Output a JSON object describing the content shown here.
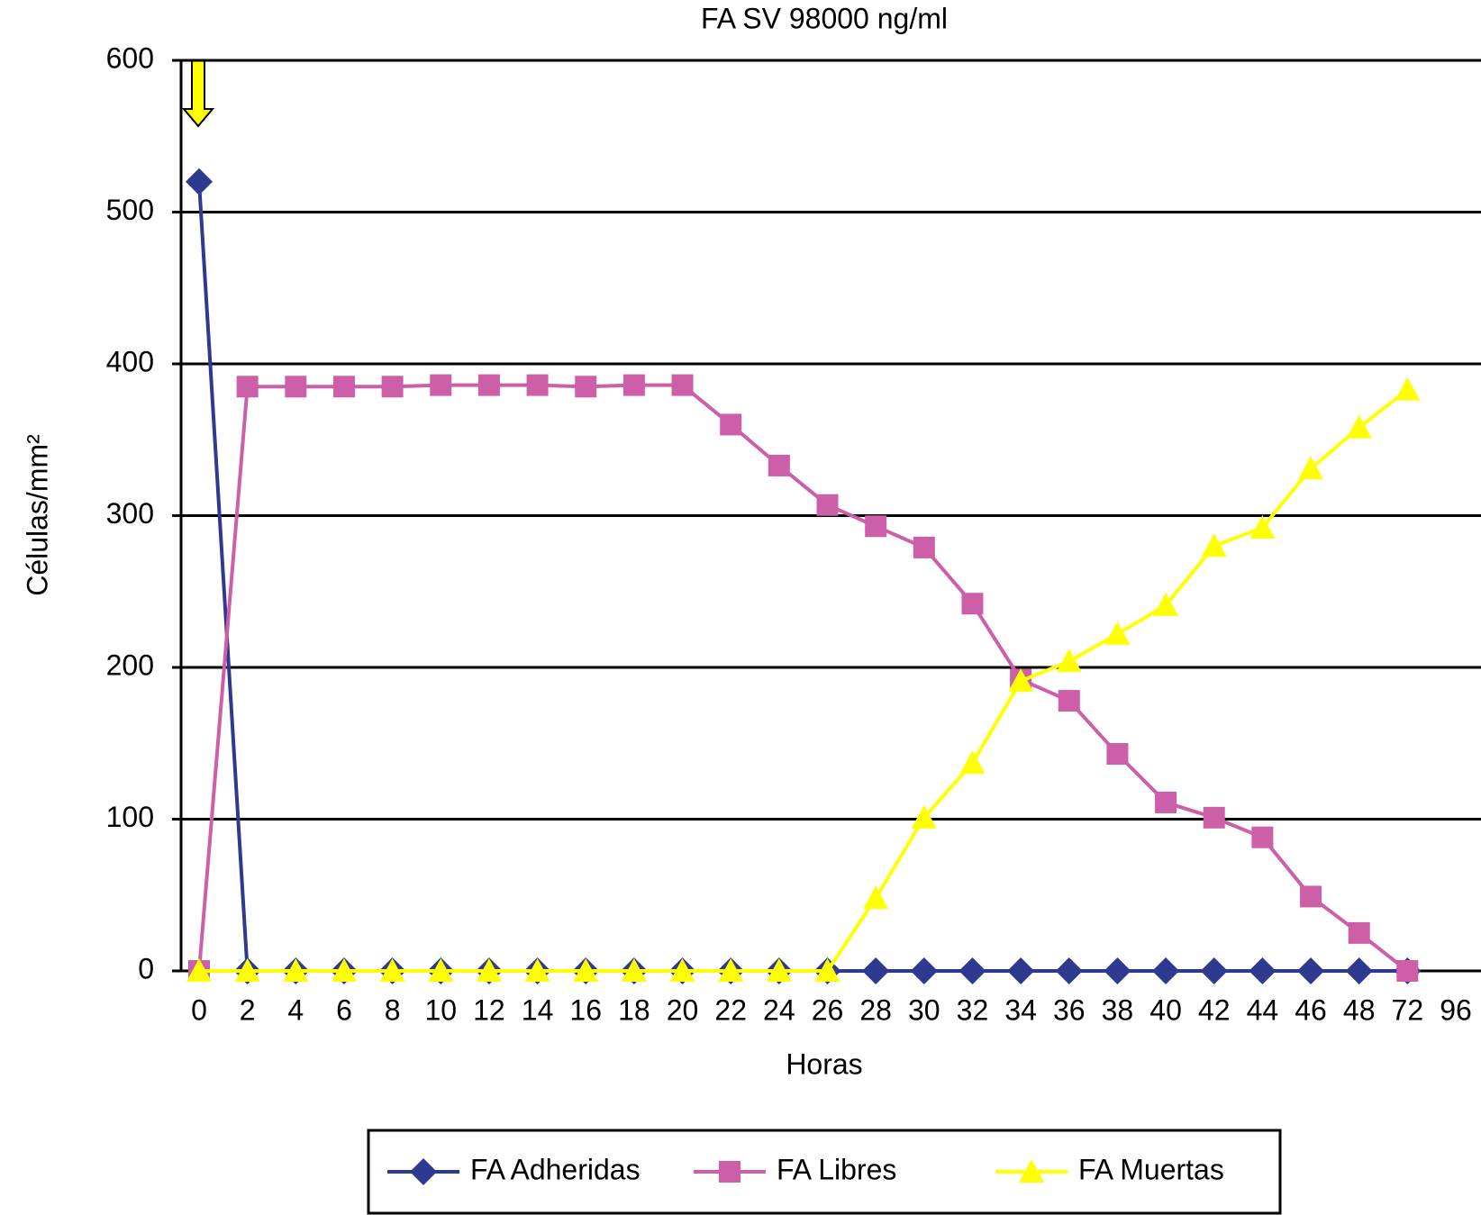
{
  "chart_data": {
    "type": "line",
    "title": "FA SV 98000 ng/ml",
    "x_label": "Horas",
    "y_label": "Células/mm²",
    "categories": [
      "0",
      "2",
      "4",
      "6",
      "8",
      "10",
      "12",
      "14",
      "16",
      "18",
      "20",
      "22",
      "24",
      "26",
      "28",
      "30",
      "32",
      "34",
      "36",
      "38",
      "40",
      "42",
      "44",
      "46",
      "48",
      "72",
      "96"
    ],
    "series": [
      {
        "name": "FA Adheridas",
        "color": "#2e3a8f",
        "marker": "diamond",
        "values": [
          520,
          0,
          0,
          0,
          0,
          0,
          0,
          0,
          0,
          0,
          0,
          0,
          0,
          0,
          0,
          0,
          0,
          0,
          0,
          0,
          0,
          0,
          0,
          0,
          0,
          0,
          null
        ]
      },
      {
        "name": "FA Libres",
        "color": "#cc5fa8",
        "marker": "square",
        "values": [
          0,
          385,
          385,
          385,
          385,
          386,
          386,
          386,
          385,
          386,
          386,
          360,
          333,
          307,
          293,
          279,
          242,
          192,
          178,
          143,
          111,
          101,
          88,
          49,
          25,
          0,
          null
        ]
      },
      {
        "name": "FA Muertas",
        "color": "#ffff00",
        "marker": "triangle",
        "values": [
          0,
          0,
          0,
          0,
          0,
          0,
          0,
          0,
          0,
          0,
          0,
          0,
          0,
          0,
          48,
          101,
          137,
          191,
          204,
          222,
          241,
          280,
          292,
          331,
          358,
          383,
          null
        ]
      }
    ],
    "ylim": [
      0,
      600
    ],
    "yticks": [
      0,
      100,
      200,
      300,
      400,
      500,
      600
    ],
    "grid": true,
    "legend": "bottom"
  }
}
